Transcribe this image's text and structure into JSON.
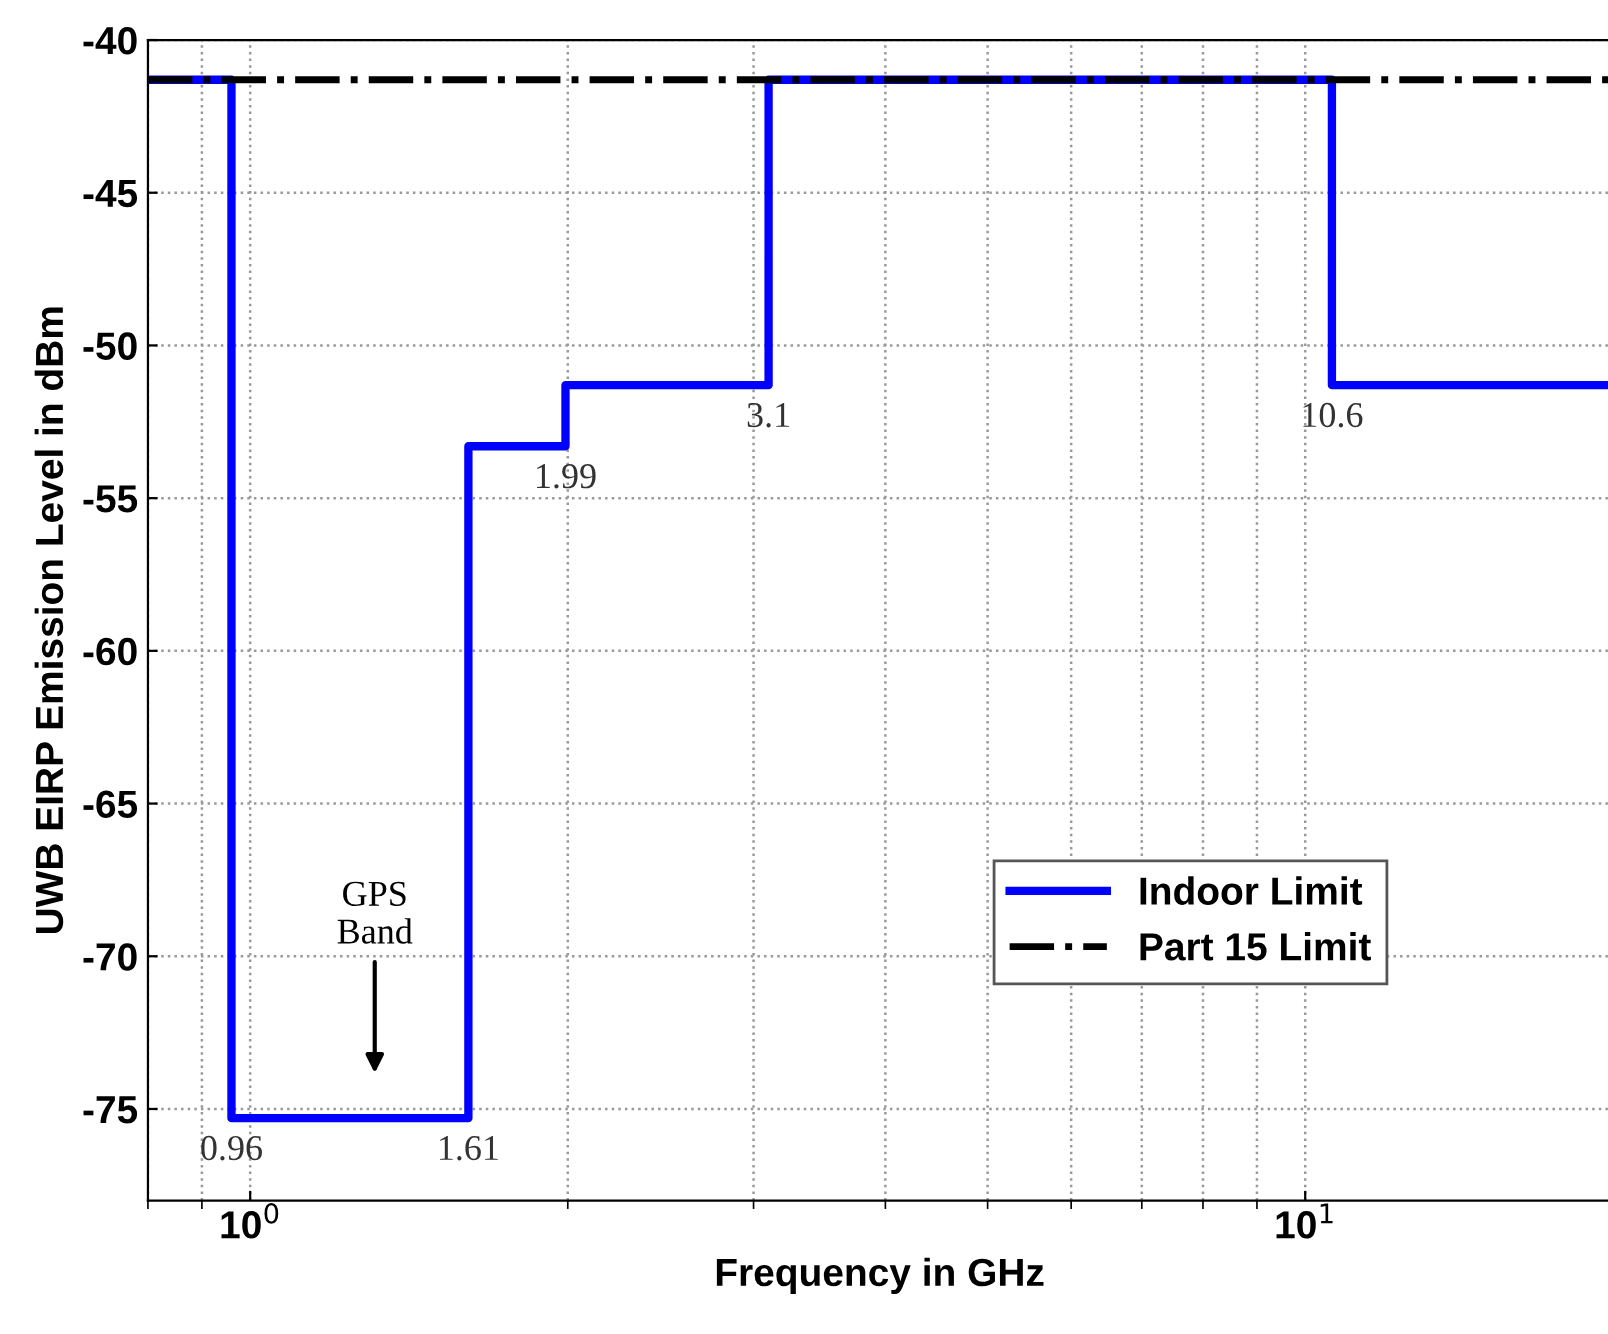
{
  "chart_data": {
    "type": "step",
    "xlabel": "Frequency in GHz",
    "ylabel": "UWB EIRP Emission Level in dBm",
    "series": [
      {
        "name": "Indoor Limit",
        "color": "#0000ff",
        "x": [
          0.8,
          0.96,
          1.61,
          1.99,
          3.1,
          10.6,
          19.5
        ],
        "values": [
          -41.3,
          -75.3,
          -53.3,
          -51.3,
          -41.3,
          -51.3,
          -51.3
        ]
      }
    ],
    "ref_lines": [
      {
        "axis": "y",
        "value": -41.3,
        "label": "Part 15 Limit",
        "color": "#000000",
        "line_style": "dashdot"
      }
    ],
    "annotations": [
      {
        "text": "0.96",
        "x": 0.96,
        "y": -75.3
      },
      {
        "text": "1.61",
        "x": 1.61,
        "y": -75.3
      },
      {
        "text": "1.99",
        "x": 1.99,
        "y": -53.3
      },
      {
        "text": "3.1",
        "x": 3.1,
        "y": -51.3
      },
      {
        "text": "10.6",
        "x": 10.6,
        "y": -51.3
      },
      "GPS\nBand"
    ],
    "log": "x",
    "xlim": [
      0.8,
      19.5
    ],
    "xticks": [
      {
        "value": 1,
        "label": "10$^{0}$"
      },
      {
        "value": 10,
        "label": "10$^{1}$"
      }
    ],
    "ylim": [
      -78,
      -40
    ],
    "yticks": [
      -75,
      -70,
      -65,
      -60,
      -55,
      -50,
      -45,
      -40
    ],
    "grid": true,
    "legend": "lower right",
    "line_style": "solid",
    "marker": "none"
  }
}
